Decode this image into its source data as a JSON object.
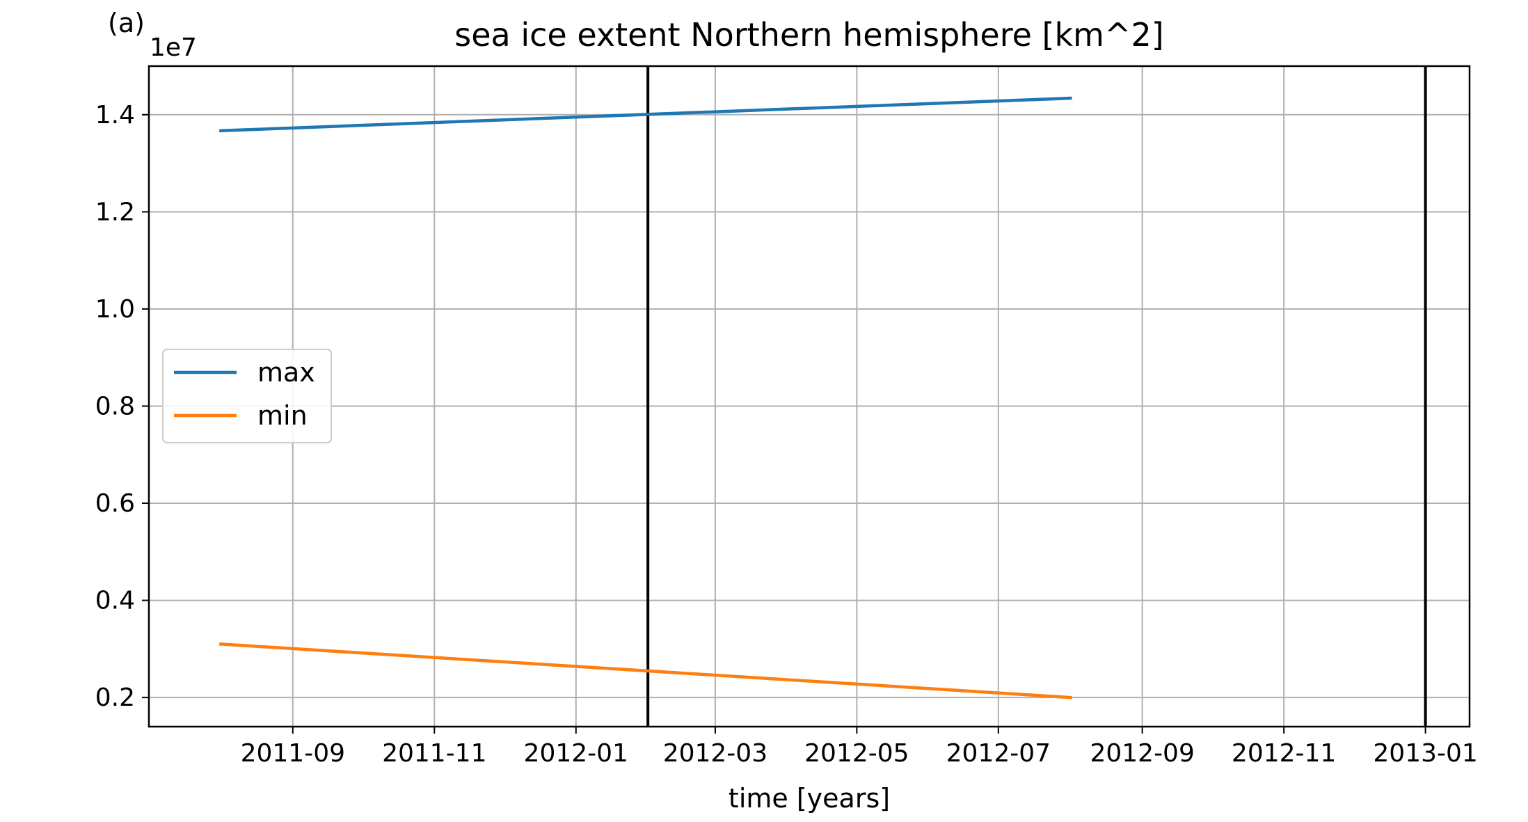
{
  "panel_label": "(a)",
  "chart_data": {
    "type": "line",
    "title": "sea ice extent Northern hemisphere [km^2]",
    "xlabel": "time [years]",
    "ylabel": "",
    "y_offset_label": "1e7",
    "y_scale_factor": 10000000,
    "xlim": [
      "2011-07-01",
      "2013-01-20"
    ],
    "ylim": [
      1400000,
      15000000
    ],
    "x_ticks": [
      "2011-09-01",
      "2011-11-01",
      "2012-01-01",
      "2012-03-01",
      "2012-05-01",
      "2012-07-01",
      "2012-09-01",
      "2012-11-01",
      "2013-01-01"
    ],
    "x_tick_labels": [
      "2011-09",
      "2011-11",
      "2012-01",
      "2012-03",
      "2012-05",
      "2012-07",
      "2012-09",
      "2012-11",
      "2013-01"
    ],
    "y_ticks": [
      2000000,
      4000000,
      6000000,
      8000000,
      10000000,
      12000000,
      14000000
    ],
    "y_tick_labels": [
      "0.2",
      "0.4",
      "0.6",
      "0.8",
      "1.0",
      "1.2",
      "1.4"
    ],
    "grid": true,
    "legend_position": "center-left",
    "series": [
      {
        "name": "max",
        "color": "#1f77b4",
        "x": [
          "2011-08-01",
          "2012-08-01"
        ],
        "y": [
          13670000,
          14340000
        ]
      },
      {
        "name": "min",
        "color": "#ff7f0e",
        "x": [
          "2011-08-01",
          "2012-08-01"
        ],
        "y": [
          3100000,
          2000000
        ]
      }
    ],
    "vlines": [
      {
        "x": "2012-02-01",
        "color": "#000000"
      },
      {
        "x": "2013-01-01",
        "color": "#000000"
      }
    ]
  }
}
